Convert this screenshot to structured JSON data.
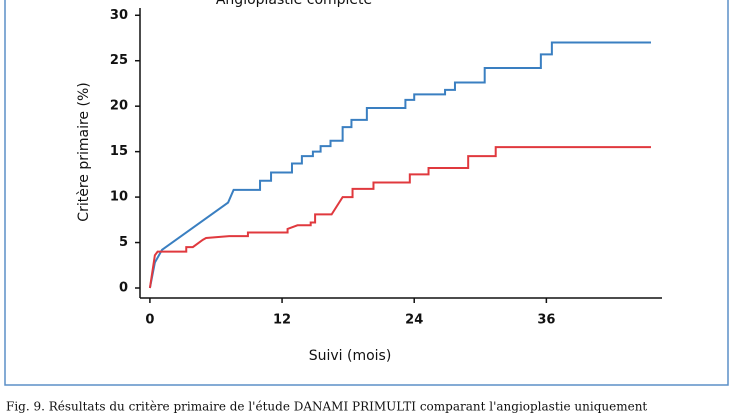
{
  "chart_data": {
    "type": "line",
    "title": "Angioplastie complète",
    "ylabel": "Critère primaire (%)",
    "xlabel": "Suivi (mois)",
    "caption": "Fig. 9. Résultats du critère primaire de l'étude DANAMI PRIMULTI comparant l'angioplastie uniquement",
    "xlim": [
      -0.9,
      46.5
    ],
    "ylim": [
      -1.1,
      30.8
    ],
    "xticks": [
      0,
      12,
      24,
      36
    ],
    "yticks": [
      0,
      5,
      10,
      15,
      20,
      25,
      30
    ],
    "series": [
      {
        "color": "#3a7fc1",
        "x": [
          0,
          0.45,
          1.1,
          7.1,
          7.6,
          10,
          10,
          11,
          11,
          12.9,
          12.9,
          13.8,
          13.8,
          14.8,
          14.8,
          15.5,
          15.5,
          16.4,
          16.4,
          17.5,
          17.5,
          18.3,
          18.3,
          19.7,
          19.7,
          23.2,
          23.2,
          24,
          24,
          26.8,
          26.8,
          27.7,
          27.7,
          30.4,
          30.4,
          35.5,
          35.5,
          36.5,
          36.5,
          45.5
        ],
        "values": [
          0,
          2.8,
          4.2,
          9.4,
          10.8,
          10.8,
          11.8,
          11.8,
          12.7,
          12.7,
          13.7,
          13.7,
          14.5,
          14.5,
          15,
          15,
          15.6,
          15.6,
          16.2,
          16.2,
          17.7,
          17.7,
          18.5,
          18.5,
          19.8,
          19.8,
          20.7,
          20.7,
          21.3,
          21.3,
          21.8,
          21.8,
          22.6,
          22.6,
          24.2,
          24.2,
          25.7,
          25.7,
          27,
          27
        ]
      },
      {
        "color": "#e0393e",
        "x": [
          0,
          0.45,
          0.7,
          3.3,
          3.3,
          3.9,
          4.8,
          5.1,
          7.2,
          8.9,
          8.9,
          12.5,
          12.5,
          13.4,
          14.6,
          14.6,
          15,
          15,
          16.5,
          17.5,
          18.4,
          18.4,
          20.3,
          20.3,
          23.6,
          23.6,
          25.3,
          25.3,
          28.9,
          28.9,
          31.4,
          31.4,
          45.5
        ],
        "values": [
          0,
          3.6,
          4,
          4,
          4.5,
          4.5,
          5.3,
          5.5,
          5.7,
          5.7,
          6.1,
          6.1,
          6.5,
          6.9,
          6.9,
          7.2,
          7.2,
          8.1,
          8.1,
          10,
          10,
          10.9,
          10.9,
          11.6,
          11.6,
          12.5,
          12.5,
          13.2,
          13.2,
          14.5,
          14.5,
          15.5,
          15.5
        ]
      }
    ]
  }
}
